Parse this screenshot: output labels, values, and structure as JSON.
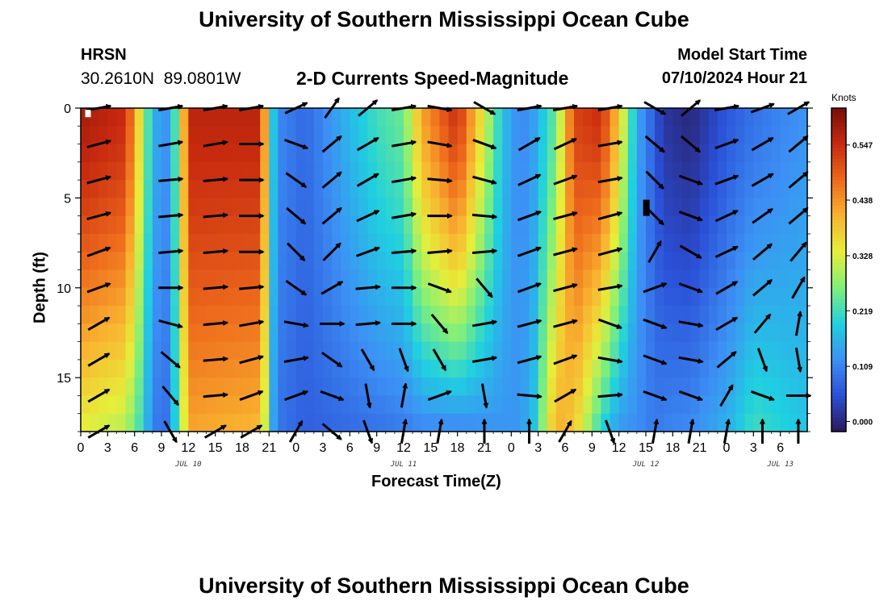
{
  "page": {
    "title": "University of Southern Mississippi Ocean Cube",
    "station_code": "HRSN",
    "station_coords": "30.2610N  89.0801W",
    "chart_heading": "2-D Currents Speed-Magnitude",
    "model_start_label": "Model Start Time",
    "model_start_value": "07/10/2024 Hour 21",
    "footer_title": "University of Southern Mississippi Ocean Cube"
  },
  "colors": {
    "arrow": "#000000",
    "colormap": [
      "#2a1858",
      "#2a4fd6",
      "#3d8ff5",
      "#1fd0e0",
      "#7fef7a",
      "#e6ee3a",
      "#f9b430",
      "#ee6a1c",
      "#c82a0f",
      "#7a0c08"
    ]
  },
  "chart_data": {
    "type": "heatmap",
    "title": "2-D Currents Speed-Magnitude",
    "xlabel": "Forecast Time(Z)",
    "ylabel": "Depth (ft)",
    "x_range_hours": [
      0,
      81
    ],
    "y_range_ft": [
      0,
      18
    ],
    "x_tick_labels": [
      "0",
      "3",
      "6",
      "9",
      "12",
      "15",
      "18",
      "21",
      "0",
      "3",
      "6",
      "9",
      "12",
      "15",
      "18",
      "21",
      "0",
      "3",
      "6",
      "9",
      "12",
      "15",
      "18",
      "21",
      "0",
      "3",
      "6"
    ],
    "y_ticks": [
      0,
      5,
      10,
      15
    ],
    "y_tick_labels": [
      "0",
      "5",
      "10",
      "15"
    ],
    "date_labels": [
      {
        "text": "JUL 10",
        "hour": 12
      },
      {
        "text": "JUL 11",
        "hour": 36
      },
      {
        "text": "JUL 12",
        "hour": 63
      },
      {
        "text": "JUL 13",
        "hour": 78
      }
    ],
    "colorbar": {
      "label": "Knots",
      "min": -0.02,
      "max": 0.62,
      "tick_values": [
        0.547,
        0.438,
        0.328,
        0.219,
        0.109,
        0.0
      ],
      "tick_labels": [
        "0.547",
        "0.438",
        "0.328",
        "0.219",
        "0.109",
        "0.000"
      ]
    },
    "speed_profile": {
      "hours": [
        0,
        5,
        7,
        8,
        9.5,
        11,
        12,
        20,
        21,
        21.5,
        22.5,
        25,
        33,
        36,
        38,
        42,
        47,
        49,
        50.5,
        53,
        55,
        58,
        60,
        62,
        63,
        64,
        65,
        68,
        72,
        75,
        81
      ],
      "surface": [
        0.58,
        0.55,
        0.3,
        0.16,
        0.13,
        0.27,
        0.56,
        0.56,
        0.3,
        0.18,
        0.11,
        0.08,
        0.22,
        0.25,
        0.42,
        0.55,
        0.18,
        0.11,
        0.14,
        0.25,
        0.52,
        0.55,
        0.38,
        0.15,
        0.11,
        0.06,
        0.02,
        0.0,
        0.06,
        0.09,
        0.13
      ],
      "bottom": [
        0.33,
        0.3,
        0.2,
        0.1,
        0.09,
        0.24,
        0.42,
        0.4,
        0.24,
        0.14,
        0.09,
        0.07,
        0.09,
        0.1,
        0.11,
        0.11,
        0.13,
        0.13,
        0.18,
        0.42,
        0.38,
        0.2,
        0.13,
        0.12,
        0.11,
        0.1,
        0.11,
        0.12,
        0.16,
        0.22,
        0.18
      ]
    },
    "vector_rows_ft": [
      0,
      2,
      4,
      6,
      8,
      10,
      12,
      14,
      16,
      18
    ],
    "vector_cols_hours": [
      2,
      10,
      15,
      19,
      24,
      28,
      32,
      36,
      40,
      45,
      50,
      54,
      59,
      64,
      68,
      72,
      76,
      80
    ],
    "vector_directions": [
      [
        10,
        10,
        10,
        10,
        25,
        55,
        40,
        10,
        -10,
        -30,
        10,
        10,
        10,
        -30,
        40,
        10,
        20,
        30
      ],
      [
        15,
        10,
        10,
        0,
        -20,
        40,
        30,
        10,
        -10,
        -20,
        30,
        25,
        10,
        -40,
        -40,
        20,
        30,
        40
      ],
      [
        15,
        5,
        5,
        0,
        -35,
        40,
        30,
        10,
        -5,
        -15,
        25,
        20,
        10,
        -45,
        -20,
        20,
        30,
        40
      ],
      [
        15,
        5,
        5,
        0,
        -40,
        40,
        25,
        10,
        0,
        -5,
        20,
        15,
        15,
        -45,
        -20,
        25,
        35,
        40
      ],
      [
        20,
        5,
        5,
        0,
        -45,
        45,
        20,
        5,
        5,
        5,
        20,
        15,
        15,
        60,
        -30,
        25,
        40,
        50
      ],
      [
        20,
        0,
        5,
        5,
        -35,
        30,
        5,
        0,
        -20,
        -50,
        20,
        15,
        10,
        20,
        -20,
        30,
        40,
        60
      ],
      [
        30,
        -15,
        5,
        10,
        -10,
        0,
        5,
        0,
        -50,
        10,
        15,
        15,
        -20,
        -20,
        -10,
        30,
        50,
        80
      ],
      [
        30,
        -40,
        5,
        15,
        10,
        -35,
        -60,
        -70,
        -60,
        10,
        15,
        20,
        -10,
        -20,
        -10,
        40,
        -70,
        -80
      ],
      [
        30,
        -50,
        5,
        20,
        20,
        -20,
        -80,
        80,
        20,
        -80,
        -5,
        30,
        5,
        -20,
        -20,
        60,
        -20,
        0
      ],
      [
        30,
        -60,
        30,
        30,
        60,
        -40,
        -70,
        80,
        80,
        90,
        90,
        60,
        -70,
        80,
        80,
        80,
        90,
        90
      ]
    ],
    "annotations": [
      "white marker at surface near hour 0",
      "black marker at depth ~6 ft near hour 62"
    ]
  }
}
